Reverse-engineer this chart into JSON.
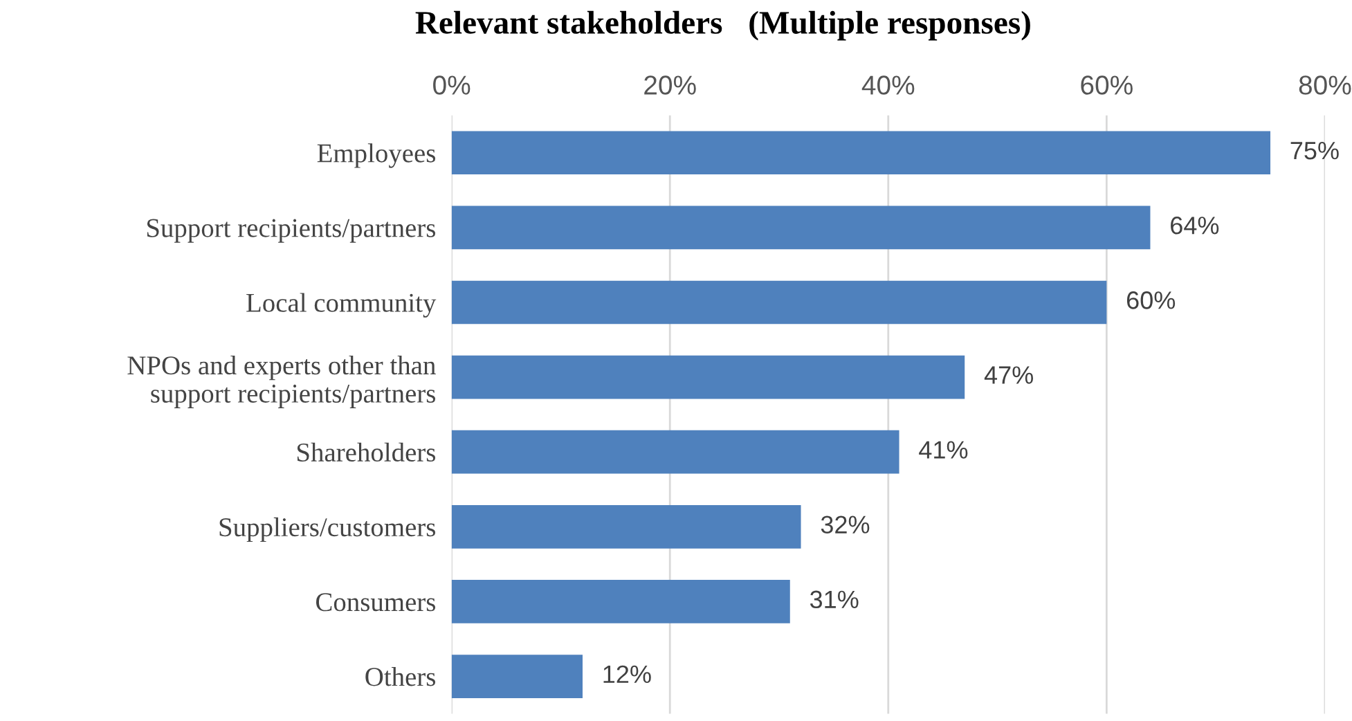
{
  "chart_data": {
    "type": "bar",
    "orientation": "horizontal",
    "title": "Relevant stakeholders　(Multiple responses)",
    "categories": [
      "Employees",
      "Support recipients/partners",
      "Local community",
      "NPOs and experts other than\nsupport recipients/partners",
      "Shareholders",
      "Suppliers/customers",
      "Consumers",
      "Others"
    ],
    "values": [
      75,
      64,
      60,
      47,
      41,
      32,
      31,
      12
    ],
    "value_labels": [
      "75%",
      "64%",
      "60%",
      "47%",
      "41%",
      "32%",
      "31%",
      "12%"
    ],
    "color": "#4f81bd",
    "xlim": [
      0,
      80
    ],
    "xticks": [
      {
        "value": 0,
        "label": "0%"
      },
      {
        "value": 20,
        "label": "20%"
      },
      {
        "value": 40,
        "label": "40%"
      },
      {
        "value": 60,
        "label": "60%"
      },
      {
        "value": 80,
        "label": "80%"
      }
    ],
    "grid": "x"
  }
}
